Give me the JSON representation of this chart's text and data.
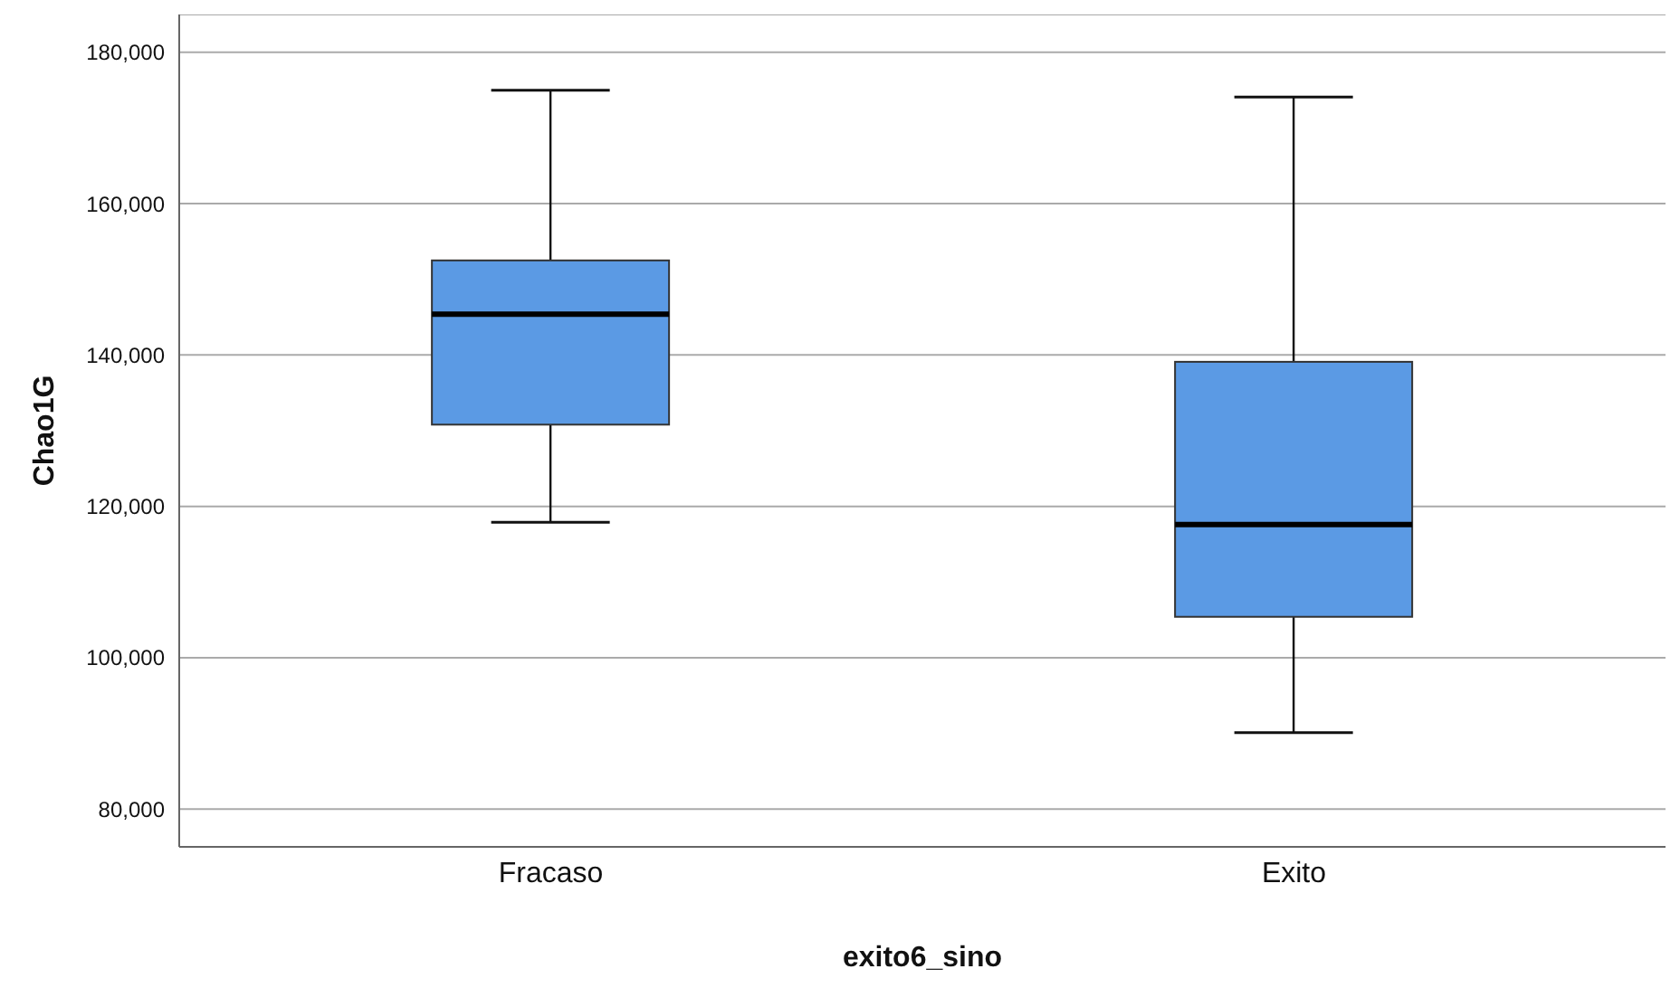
{
  "chart_data": {
    "type": "box",
    "xlabel": "exito6_sino",
    "ylabel": "Chao1G",
    "categories": [
      "Fracaso",
      "Exito"
    ],
    "color": "#5b9ae4",
    "boxes": [
      {
        "low": 117900,
        "q1": 130800,
        "median": 145400,
        "q3": 152500,
        "high": 175000
      },
      {
        "low": 90100,
        "q1": 105400,
        "median": 117600,
        "q3": 139100,
        "high": 174100
      }
    ],
    "ylim": [
      75000,
      185000
    ],
    "yticks": [
      {
        "value": 80000,
        "label": "80,000"
      },
      {
        "value": 100000,
        "label": "100,000"
      },
      {
        "value": 120000,
        "label": "120,000"
      },
      {
        "value": 140000,
        "label": "140,000"
      },
      {
        "value": 160000,
        "label": "160,000"
      },
      {
        "value": 180000,
        "label": "180,000"
      }
    ],
    "grid": "y"
  }
}
